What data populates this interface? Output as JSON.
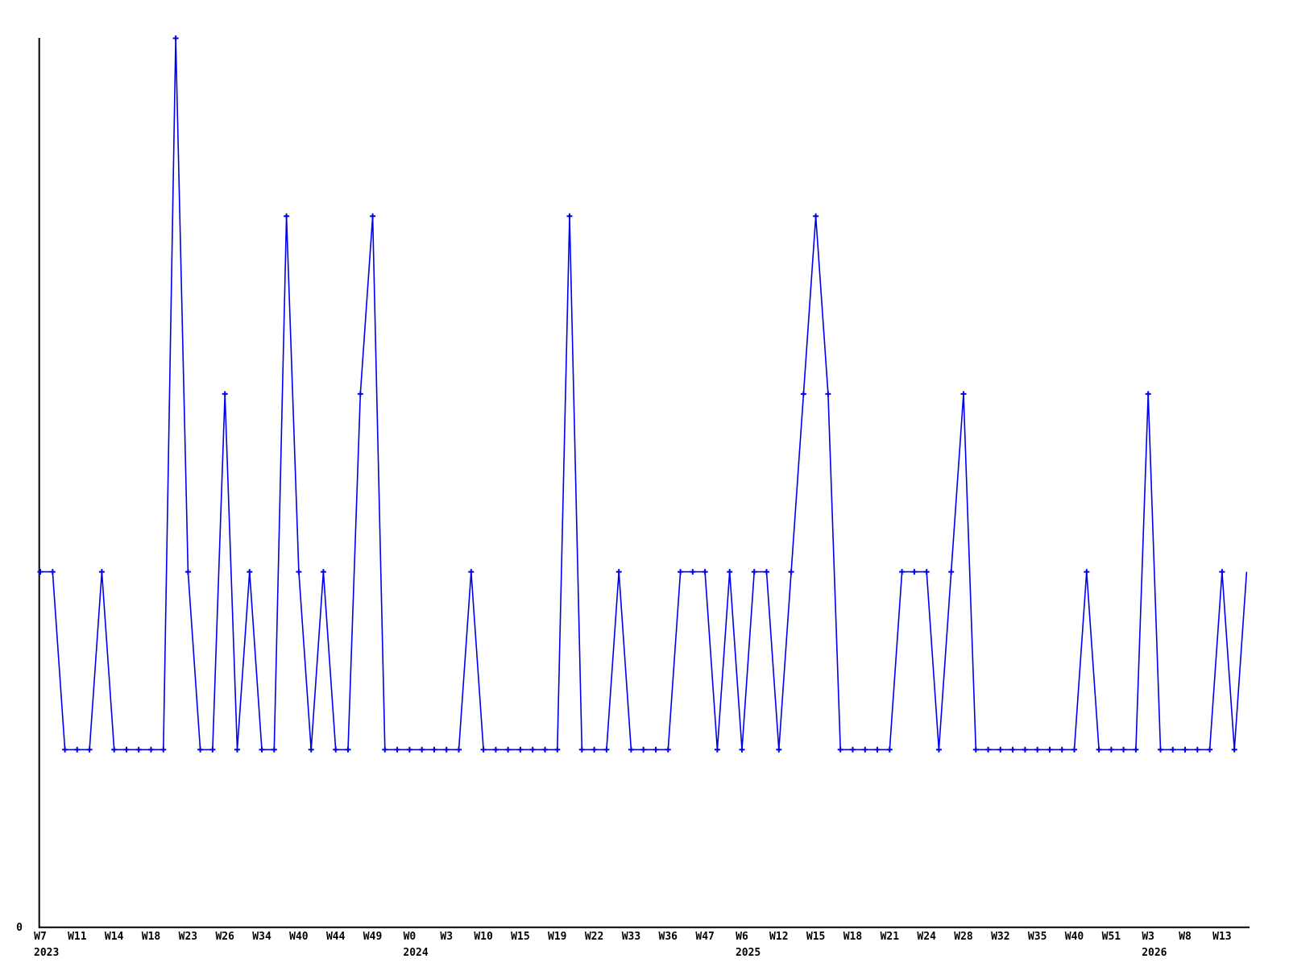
{
  "chart": {
    "y_axis_zero_label": "0",
    "line_color": "#0000ee",
    "axis_color": "#000000",
    "background_color": "#ffffff"
  },
  "chart_data": {
    "type": "line",
    "title": null,
    "legend": null,
    "grid": false,
    "marker": "plus",
    "ylim": [
      0,
      5
    ],
    "y_tick_labels": [
      "0"
    ],
    "x_tick_every_n_points": 3,
    "x_tick_labels": [
      "W7",
      "W11",
      "W14",
      "W18",
      "W23",
      "W26",
      "W34",
      "W40",
      "W44",
      "W49",
      "W0",
      "W3",
      "W10",
      "W15",
      "W19",
      "W22",
      "W33",
      "W36",
      "W47",
      "W6",
      "W12",
      "W15",
      "W18",
      "W21",
      "W24",
      "W28",
      "W32",
      "W35",
      "W40",
      "W51",
      "W3",
      "W8",
      "W13"
    ],
    "x_year_labels": [
      {
        "tick_index": 0,
        "year": "2023"
      },
      {
        "tick_index": 10,
        "year": "2024"
      },
      {
        "tick_index": 19,
        "year": "2025"
      },
      {
        "tick_index": 30,
        "year": "2026"
      }
    ],
    "values": [
      2,
      2,
      1,
      1,
      1,
      2,
      1,
      1,
      1,
      1,
      1,
      5,
      2,
      1,
      1,
      3,
      1,
      2,
      1,
      1,
      4,
      2,
      1,
      2,
      1,
      1,
      3,
      4,
      1,
      1,
      1,
      1,
      1,
      1,
      1,
      2,
      1,
      1,
      1,
      1,
      1,
      1,
      1,
      4,
      1,
      1,
      1,
      2,
      1,
      1,
      1,
      1,
      2,
      2,
      2,
      1,
      2,
      1,
      2,
      2,
      1,
      2,
      3,
      4,
      3,
      1,
      1,
      1,
      1,
      1,
      2,
      2,
      2,
      1,
      2,
      3,
      1,
      1,
      1,
      1,
      1,
      1,
      1,
      1,
      1,
      2,
      1,
      1,
      1,
      1,
      3,
      1,
      1,
      1,
      1,
      1,
      2,
      1,
      2
    ]
  }
}
